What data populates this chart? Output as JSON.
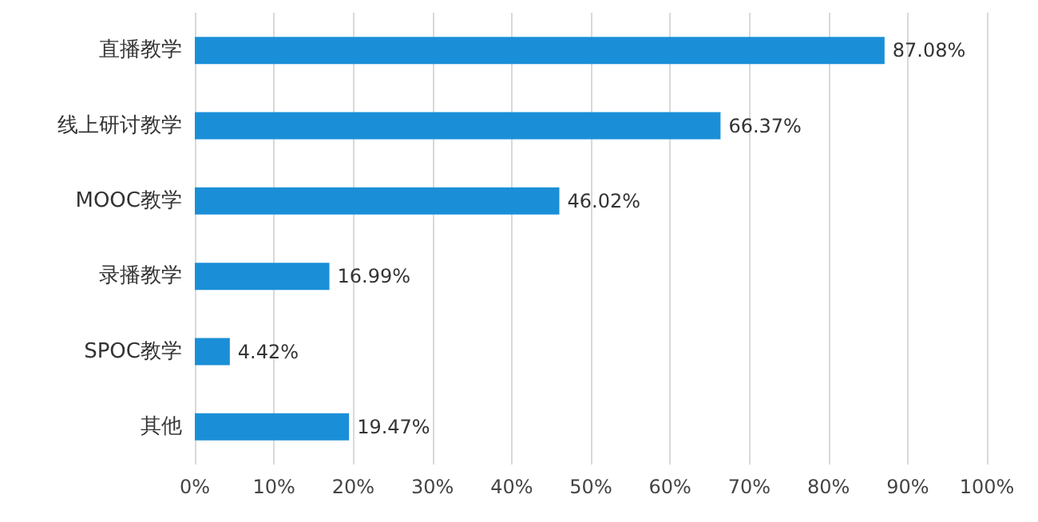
{
  "chart_data": {
    "type": "bar",
    "orientation": "horizontal",
    "categories": [
      "直播教学",
      "线上研讨教学",
      "MOOC教学",
      "录播教学",
      "SPOC教学",
      "其他"
    ],
    "values": [
      87.08,
      66.37,
      46.02,
      16.99,
      4.42,
      19.47
    ],
    "value_labels": [
      "87.08%",
      "66.37%",
      "46.02%",
      "16.99%",
      "4.42%",
      "19.47%"
    ],
    "color": "#1a8fd8",
    "xlim": [
      0,
      100
    ],
    "xticks": [
      {
        "value": 0,
        "label": "0%"
      },
      {
        "value": 10,
        "label": "10%"
      },
      {
        "value": 20,
        "label": "20%"
      },
      {
        "value": 30,
        "label": "30%"
      },
      {
        "value": 40,
        "label": "40%"
      },
      {
        "value": 50,
        "label": "50%"
      },
      {
        "value": 60,
        "label": "60%"
      },
      {
        "value": 70,
        "label": "70%"
      },
      {
        "value": 80,
        "label": "80%"
      },
      {
        "value": 90,
        "label": "90%"
      },
      {
        "value": 100,
        "label": "100%"
      }
    ],
    "grid": "x"
  }
}
